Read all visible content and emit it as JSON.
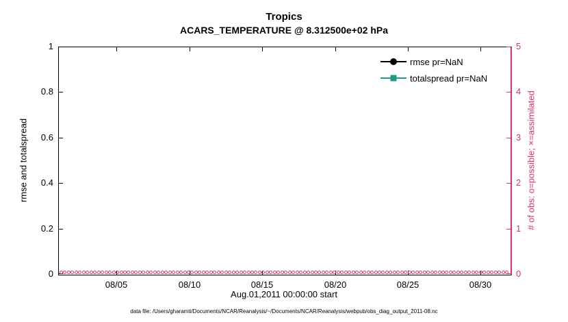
{
  "title": {
    "line1": "Tropics",
    "line2": "ACARS_TEMPERATURE @ 8.312500e+02 hPa"
  },
  "axes": {
    "left": {
      "label": "rmse and totalspread"
    },
    "right": {
      "label": "# of obs: o=possible; ×=assimilated"
    },
    "x": {
      "label": "Aug.01,2011 00:00:00 start"
    }
  },
  "legend": {
    "items": [
      {
        "label": "rmse pr=NaN",
        "marker": "filled-circle",
        "color": "#000000"
      },
      {
        "label": "totalspread pr=NaN",
        "marker": "filled-square",
        "color": "#1b998b"
      }
    ]
  },
  "caption": "data file: /Users/gharamti/Documents/NCAR/Reanalysis/~/Documents/NCAR/Reanalysis/webpub/obs_diag_output_2011-08.nc",
  "colors": {
    "right_axis": "#d6336c",
    "rmse": "#000000",
    "totalspread": "#1b998b"
  },
  "chart_data": {
    "type": "line",
    "title": "Tropics",
    "subtitle": "ACARS_TEMPERATURE @ 8.312500e+02 hPa",
    "xlabel": "Aug.01,2011 00:00:00 start",
    "ylabel_left": "rmse and totalspread",
    "ylabel_right": "# of obs: o=possible; ×=assimilated",
    "xlim_days": [
      1,
      32
    ],
    "xticks": [
      "08/05",
      "08/10",
      "08/15",
      "08/20",
      "08/25",
      "08/30"
    ],
    "ylim_left": [
      0,
      1
    ],
    "yticks_left": [
      0,
      0.2,
      0.4,
      0.6,
      0.8,
      1
    ],
    "ylim_right": [
      0,
      5
    ],
    "yticks_right": [
      0,
      1,
      2,
      3,
      4,
      5
    ],
    "grid": false,
    "legend_position": "top-right-inside",
    "series": [
      {
        "name": "rmse pr=NaN",
        "color": "#000000",
        "marker": "filled-circle",
        "axis": "left",
        "values": [],
        "note": "all values NaN — no line drawn"
      },
      {
        "name": "totalspread pr=NaN",
        "color": "#1b998b",
        "marker": "filled-square",
        "axis": "left",
        "values": [],
        "note": "all values NaN — no line drawn"
      },
      {
        "name": "obs possible (o)",
        "color": "#d6336c",
        "marker": "open-circle",
        "axis": "right",
        "constant_value": 0,
        "marker_count": 120,
        "note": "dense row of open circles at y=0 spanning Aug 01 to Sep 01"
      }
    ]
  }
}
